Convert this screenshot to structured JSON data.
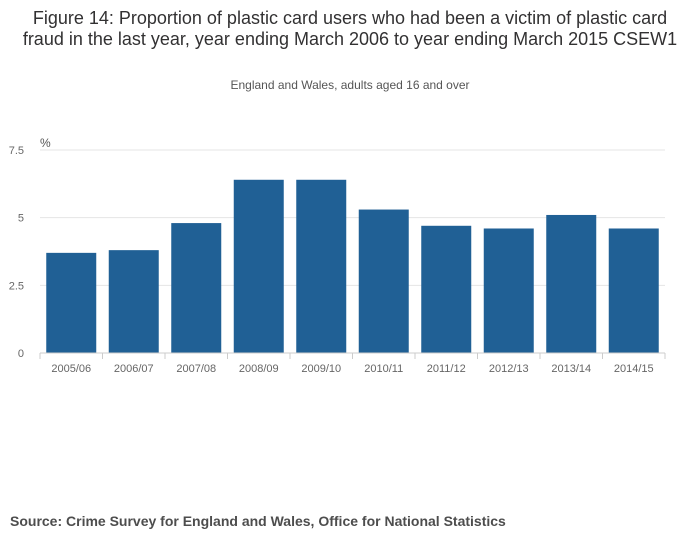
{
  "title": "Figure 14: Proportion of plastic card users who had been a victim of plastic card fraud in the last year, year ending March 2006 to year ending March 2015 CSEW1",
  "subtitle": "England and Wales, adults aged 16 and over",
  "source": "Source: Crime Survey for England and Wales, Office for National Statistics",
  "colors": {
    "bar": "#206095",
    "grid": "#e5e5e5",
    "axis": "#cccccc",
    "tick_text": "#666666"
  },
  "chart_data": {
    "type": "bar",
    "unit_label": "%",
    "categories": [
      "2005/06",
      "2006/07",
      "2007/08",
      "2008/09",
      "2009/10",
      "2010/11",
      "2011/12",
      "2012/13",
      "2013/14",
      "2014/15"
    ],
    "values": [
      3.7,
      3.8,
      4.8,
      6.4,
      6.4,
      5.3,
      4.7,
      4.6,
      5.1,
      4.6
    ],
    "yticks": [
      0,
      2.5,
      5,
      7.5
    ],
    "ytick_labels": [
      "0",
      "2.5",
      "5",
      "7.5"
    ],
    "ylim": [
      0,
      7.5
    ],
    "grid": true,
    "legend": "none"
  }
}
